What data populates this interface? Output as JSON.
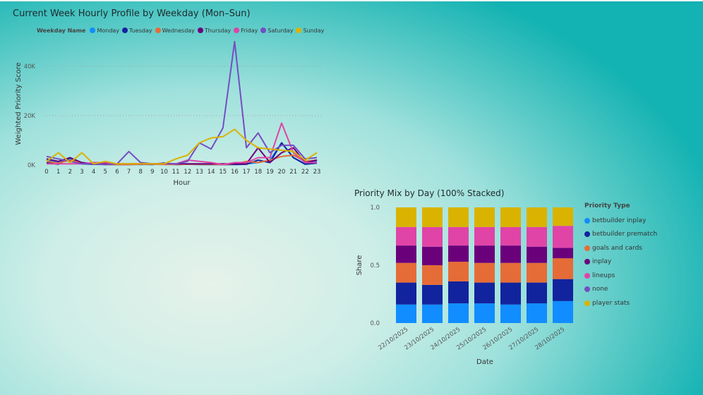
{
  "chart_data": [
    {
      "type": "line",
      "title": "Current Week Hourly Profile by Weekday (Mon–Sun)",
      "xlabel": "Hour",
      "ylabel": "Weighted Priority Score",
      "legend_title": "Weekday Name",
      "legend_position": "top-left",
      "x": [
        0,
        1,
        2,
        3,
        4,
        5,
        6,
        7,
        8,
        9,
        10,
        11,
        12,
        13,
        14,
        15,
        16,
        17,
        18,
        19,
        20,
        21,
        22,
        23
      ],
      "ylim": [
        0,
        50000
      ],
      "yticks": [
        0,
        20000,
        40000
      ],
      "ytick_labels": [
        "0K",
        "20K",
        "40K"
      ],
      "grid": true,
      "series": [
        {
          "name": "Monday",
          "color": "#118dff",
          "values": [
            2000,
            1000,
            2500,
            1000,
            500,
            500,
            300,
            300,
            200,
            300,
            500,
            200,
            300,
            300,
            300,
            200,
            300,
            500,
            1000,
            2000,
            9000,
            3000,
            500,
            1500
          ]
        },
        {
          "name": "Tuesday",
          "color": "#12239e",
          "values": [
            1000,
            300,
            3000,
            500,
            300,
            200,
            200,
            200,
            300,
            200,
            800,
            200,
            300,
            200,
            200,
            200,
            200,
            300,
            2000,
            1000,
            9000,
            3000,
            300,
            800
          ]
        },
        {
          "name": "Wednesday",
          "color": "#e66c37",
          "values": [
            1500,
            800,
            2000,
            800,
            500,
            200,
            200,
            200,
            300,
            300,
            200,
            200,
            300,
            300,
            300,
            200,
            500,
            1500,
            1000,
            2000,
            3500,
            4000,
            1500,
            2000
          ]
        },
        {
          "name": "Thursday",
          "color": "#6b007b",
          "values": [
            2500,
            1500,
            3000,
            1000,
            500,
            500,
            500,
            500,
            500,
            500,
            700,
            500,
            500,
            500,
            500,
            500,
            500,
            500,
            7000,
            1000,
            5000,
            7000,
            1000,
            2000
          ]
        },
        {
          "name": "Friday",
          "color": "#e044a7",
          "values": [
            500,
            500,
            500,
            500,
            1000,
            1000,
            500,
            500,
            500,
            500,
            500,
            500,
            2000,
            1500,
            1000,
            200,
            1000,
            1000,
            3000,
            3000,
            17000,
            5000,
            1000,
            1000
          ]
        },
        {
          "name": "Saturday",
          "color": "#744ec2",
          "values": [
            3500,
            2500,
            1500,
            500,
            500,
            200,
            500,
            5500,
            1000,
            500,
            500,
            500,
            1500,
            9000,
            6500,
            15000,
            50000,
            7000,
            13000,
            5000,
            8000,
            8000,
            2500,
            3000
          ]
        },
        {
          "name": "Sunday",
          "color": "#d9b300",
          "values": [
            1500,
            5000,
            1000,
            5000,
            500,
            1500,
            500,
            500,
            500,
            500,
            500,
            2500,
            4000,
            9000,
            11000,
            11500,
            14500,
            10000,
            7000,
            6500,
            6000,
            5500,
            2000,
            5000
          ]
        }
      ]
    },
    {
      "type": "bar",
      "stacked": "100%",
      "title": "Priority Mix by Day (100% Stacked)",
      "xlabel": "Date",
      "ylabel": "Share",
      "legend_title": "Priority Type",
      "legend_position": "right",
      "ylim": [
        0,
        1
      ],
      "yticks": [
        0.0,
        0.5,
        1.0
      ],
      "ytick_labels": [
        "0.0",
        "0.5",
        "1.0"
      ],
      "categories": [
        "22/10/2025",
        "23/10/2025",
        "24/10/2025",
        "25/10/2025",
        "26/10/2025",
        "27/10/2025",
        "28/10/2025"
      ],
      "series": [
        {
          "name": "betbuilder inplay",
          "color": "#118dff",
          "values": [
            0.16,
            0.16,
            0.17,
            0.17,
            0.16,
            0.17,
            0.19
          ]
        },
        {
          "name": "betbuilder prematch",
          "color": "#12239e",
          "values": [
            0.19,
            0.17,
            0.19,
            0.18,
            0.19,
            0.18,
            0.19
          ]
        },
        {
          "name": "goals and cards",
          "color": "#e66c37",
          "values": [
            0.17,
            0.17,
            0.17,
            0.17,
            0.17,
            0.17,
            0.18
          ]
        },
        {
          "name": "inplay",
          "color": "#6b007b",
          "values": [
            0.15,
            0.16,
            0.14,
            0.15,
            0.15,
            0.14,
            0.09
          ]
        },
        {
          "name": "lineups",
          "color": "#e044a7",
          "values": [
            0.16,
            0.17,
            0.16,
            0.16,
            0.16,
            0.17,
            0.19
          ]
        },
        {
          "name": "none",
          "color": "#744ec2",
          "values": [
            0,
            0,
            0,
            0,
            0,
            0,
            0
          ]
        },
        {
          "name": "player stats",
          "color": "#d9b300",
          "values": [
            0.17,
            0.17,
            0.17,
            0.17,
            0.17,
            0.17,
            0.16
          ]
        }
      ]
    }
  ]
}
